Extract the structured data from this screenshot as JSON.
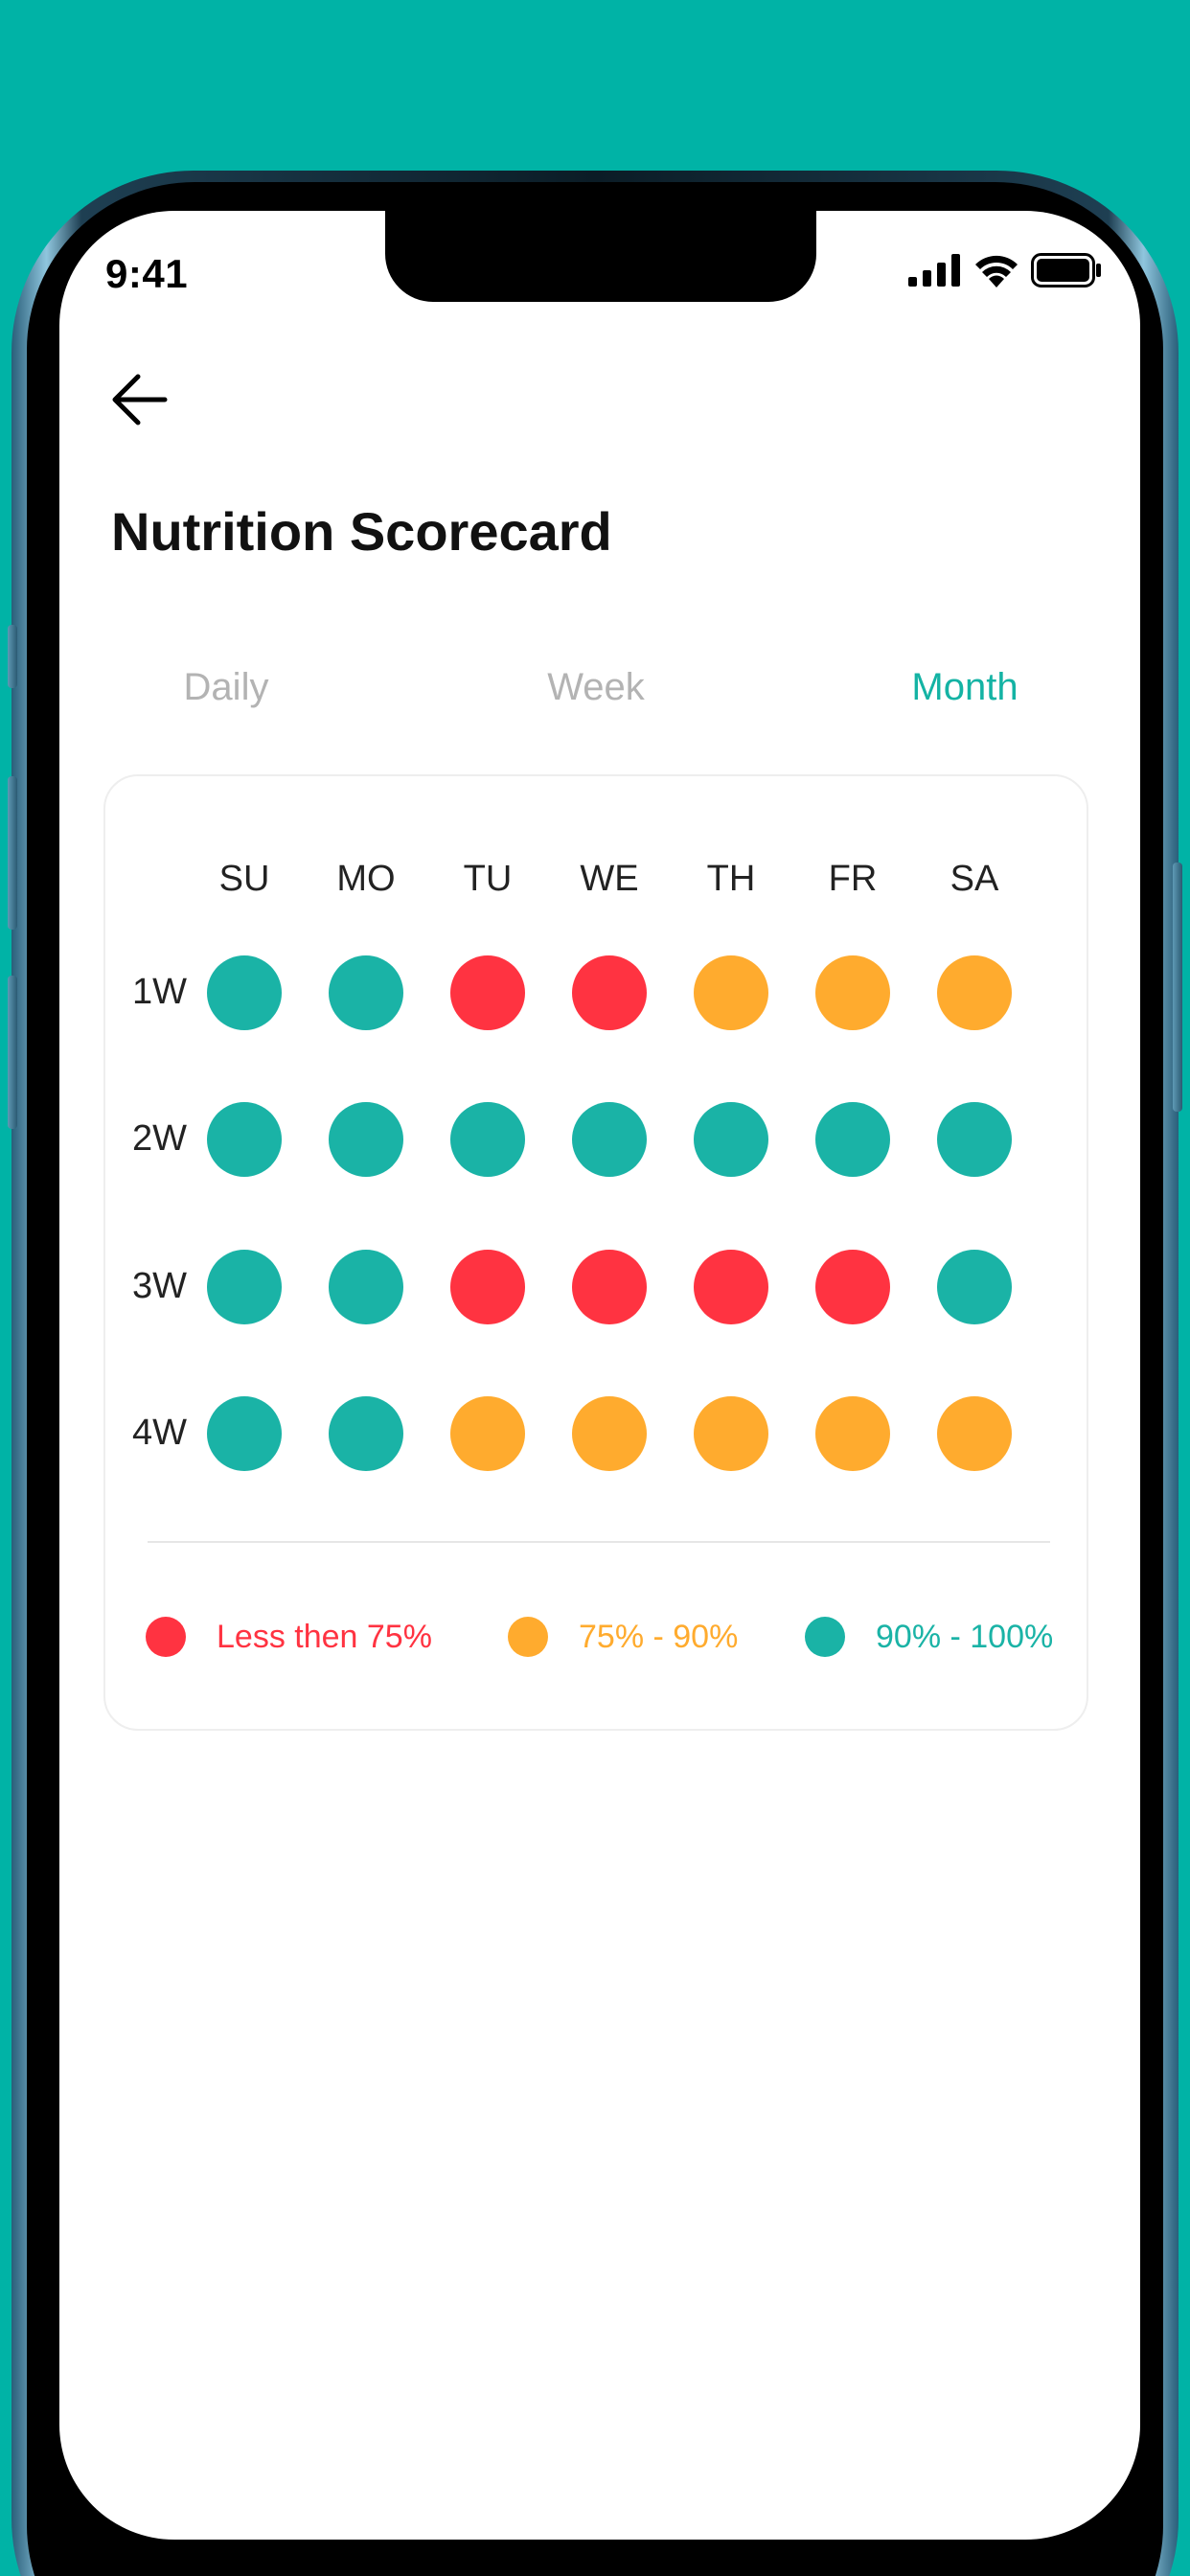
{
  "status_bar": {
    "time": "9:41",
    "icons": [
      "signal-icon",
      "wifi-icon",
      "battery-icon"
    ]
  },
  "header": {
    "back_icon": "arrow-left-icon",
    "title": "Nutrition Scorecard"
  },
  "tabs": [
    {
      "label": "Daily",
      "active": false
    },
    {
      "label": "Week",
      "active": false
    },
    {
      "label": "Month",
      "active": true
    }
  ],
  "scorecard": {
    "days": [
      "SU",
      "MO",
      "TU",
      "WE",
      "TH",
      "FR",
      "SA"
    ],
    "weeks": [
      {
        "label": "1W",
        "levels": [
          "high",
          "high",
          "low",
          "low",
          "mid",
          "mid",
          "mid"
        ]
      },
      {
        "label": "2W",
        "levels": [
          "high",
          "high",
          "high",
          "high",
          "high",
          "high",
          "high"
        ]
      },
      {
        "label": "3W",
        "levels": [
          "high",
          "high",
          "low",
          "low",
          "low",
          "low",
          "high"
        ]
      },
      {
        "label": "4W",
        "levels": [
          "high",
          "high",
          "mid",
          "mid",
          "mid",
          "mid",
          "mid"
        ]
      }
    ]
  },
  "legend": [
    {
      "key": "low",
      "label": "Less then 75%",
      "color": "#ff3341"
    },
    {
      "key": "mid",
      "label": "75% - 90%",
      "color": "#ffab2e"
    },
    {
      "key": "high",
      "label": "90% - 100%",
      "color": "#1ab3a6"
    }
  ],
  "colors": {
    "background": "#00b3a6",
    "accent": "#14b3a4",
    "inactive_tab": "#b3b3b3"
  }
}
